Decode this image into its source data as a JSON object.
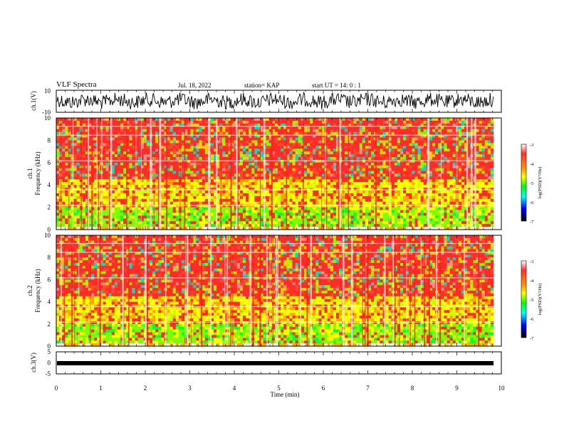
{
  "header": {
    "title": "VLF Spectra",
    "date": "Jul. 18, 2022",
    "station": "station= KAP",
    "start": "start UT = 14: 0 : 1"
  },
  "chart_data": [
    {
      "type": "line",
      "name": "ch1-waveform",
      "ylabel": "ch.1(V)",
      "ylim": [
        -10,
        10
      ],
      "yticks": [
        "10",
        "-10"
      ],
      "xlim": [
        0,
        10
      ]
    },
    {
      "type": "heatmap",
      "name": "ch1-spectrogram",
      "ylabel": "ch.1",
      "ylabel2": "Frequency (kHz)",
      "ylim": [
        0,
        10
      ],
      "yticks": [
        "0",
        "2",
        "4",
        "6",
        "8",
        "10"
      ],
      "xlim": [
        0,
        10
      ],
      "colorbar": {
        "label": "log(PSD)(V²/Hz)",
        "range": [
          -7,
          -3
        ],
        "ticks": [
          "-3",
          "-4",
          "-5",
          "-6",
          "-7"
        ]
      }
    },
    {
      "type": "heatmap",
      "name": "ch2-spectrogram",
      "ylabel": "ch.2",
      "ylabel2": "Frequency (kHz)",
      "ylim": [
        0,
        10
      ],
      "yticks": [
        "0",
        "2",
        "4",
        "6",
        "8",
        "10"
      ],
      "xlim": [
        0,
        10
      ],
      "colorbar": {
        "label": "log(PSD)(V²/Hz)",
        "range": [
          -7,
          -3
        ],
        "ticks": [
          "-3",
          "-4",
          "-5",
          "-6",
          "-7"
        ]
      }
    },
    {
      "type": "line",
      "name": "ch3-waveform",
      "ylabel": "ch.3(V)",
      "ylim": [
        -5,
        5
      ],
      "yticks": [
        "5",
        "0",
        "-5"
      ],
      "xlim": [
        0,
        10
      ],
      "xlabel": "Time (min)",
      "xticks": [
        "0",
        "1",
        "2",
        "3",
        "4",
        "5",
        "6",
        "7",
        "8",
        "9",
        "10"
      ]
    }
  ]
}
